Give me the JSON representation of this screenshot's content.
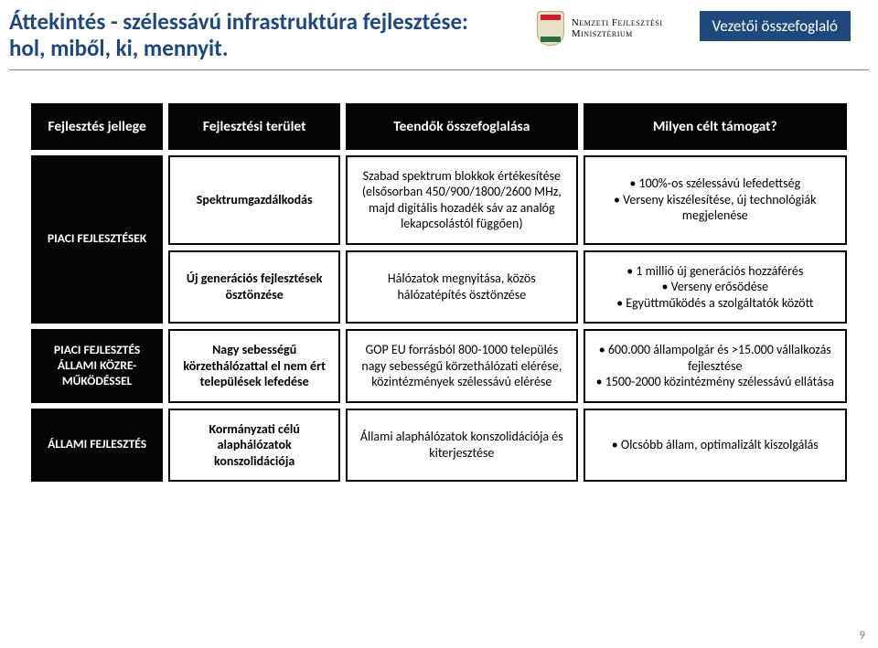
{
  "header": {
    "title": "Áttekintés - szélessávú infrastruktúra fejlesztése: hol, miből, ki, mennyit.",
    "ministry_line1": "Nemzeti Fejlesztési",
    "ministry_line2": "Minisztérium",
    "badge": "Vezetői összefoglaló"
  },
  "colors": {
    "accent": "#1f497d",
    "header_cell_bg": "#040404",
    "header_cell_fg": "#ffffff",
    "cell_border": "#040404",
    "rule": "#7f7f7f",
    "page_num": "#7f7f7f"
  },
  "fonts": {
    "body": "Calibri",
    "title_size_pt": 20,
    "badge_size_pt": 13,
    "table_header_size_pt": 12,
    "table_cell_size_pt": 11
  },
  "table": {
    "columns": [
      "Fejlesztés jellege",
      "Fejlesztési terület",
      "Teendők összefoglalása",
      "Milyen célt támogat?"
    ],
    "blocks": [
      {
        "label": "PIACI FEJLESZTÉSEK",
        "rowspan": 2,
        "rows": [
          {
            "area": "Spektrumgazdálkodás",
            "tasks": "Szabad spektrum blokkok értékesítése (elsősorban 450/900/1800/2600 MHz, majd digitális hozadék sáv az analóg lekapcsolástól függően)",
            "goals": [
              "100%-os szélessávú lefedettség",
              "Verseny kiszélesítése, új technológiák megjelenése"
            ]
          },
          {
            "area": "Új generációs fejlesztések ösztönzése",
            "tasks": "Hálózatok megnyitása, közös hálózatépítés ösztönzése",
            "goals": [
              "1 millió új generációs hozzáférés",
              "Verseny erősödése",
              "Együttműködés a szolgáltatók között"
            ]
          }
        ]
      },
      {
        "label": "PIACI FEJLESZTÉS ÁLLAMI KÖZRE-MŰKÖDÉSSEL",
        "rowspan": 1,
        "rows": [
          {
            "area": "Nagy sebességű körzethálózattal el nem ért települések lefedése",
            "tasks": "GOP EU forrásból 800-1000 település nagy sebességű körzethálózati elérése, közintézmények szélessávú elérése",
            "goals": [
              "600.000 állampolgár és >15.000 vállalkozás fejlesztése",
              "1500-2000 közintézmény szélessávú ellátása"
            ]
          }
        ]
      },
      {
        "label": "ÁLLAMI FEJLESZTÉS",
        "rowspan": 1,
        "rows": [
          {
            "area": "Kormányzati célú alaphálózatok konszolidációja",
            "tasks": "Állami alaphálózatok konszolidációja és kiterjesztése",
            "goals": [
              "Olcsóbb állam, optimalizált kiszolgálás"
            ]
          }
        ]
      }
    ]
  },
  "page_number": "9"
}
